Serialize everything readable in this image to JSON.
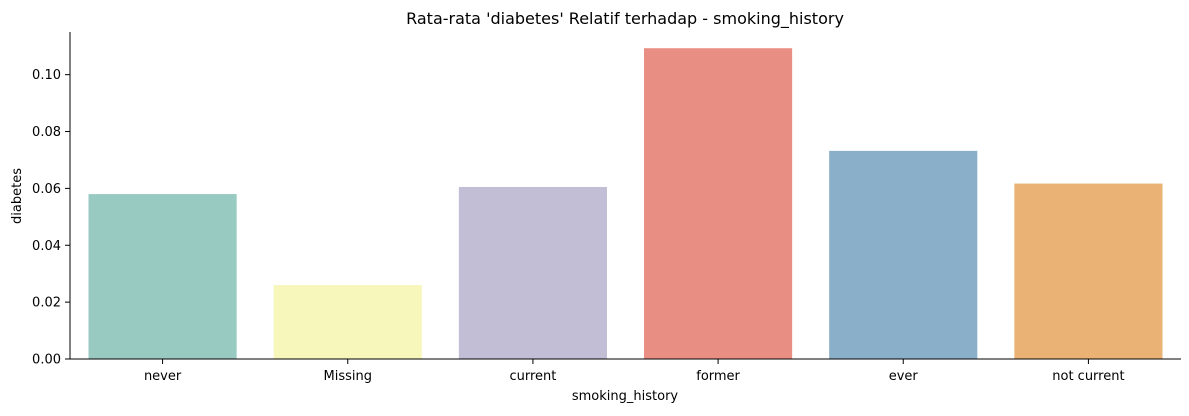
{
  "chart_data": {
    "type": "bar",
    "title": "Rata-rata 'diabetes' Relatif terhadap - smoking_history",
    "xlabel": "smoking_history",
    "ylabel": "diabetes",
    "categories": [
      "never",
      "Missing",
      "current",
      "former",
      "ever",
      "not current"
    ],
    "values": [
      0.058,
      0.026,
      0.0605,
      0.1093,
      0.0732,
      0.0617
    ],
    "colors": [
      "#98cac2",
      "#f7f6bb",
      "#c1bed6",
      "#e98e83",
      "#8aafc9",
      "#eab375"
    ],
    "ylim": [
      0,
      0.115
    ],
    "yticks": [
      "0.00",
      "0.02",
      "0.04",
      "0.06",
      "0.08",
      "0.10"
    ],
    "ytick_values": [
      0,
      0.02,
      0.04,
      0.06,
      0.08,
      0.1
    ],
    "grid": false,
    "legend": "none"
  }
}
